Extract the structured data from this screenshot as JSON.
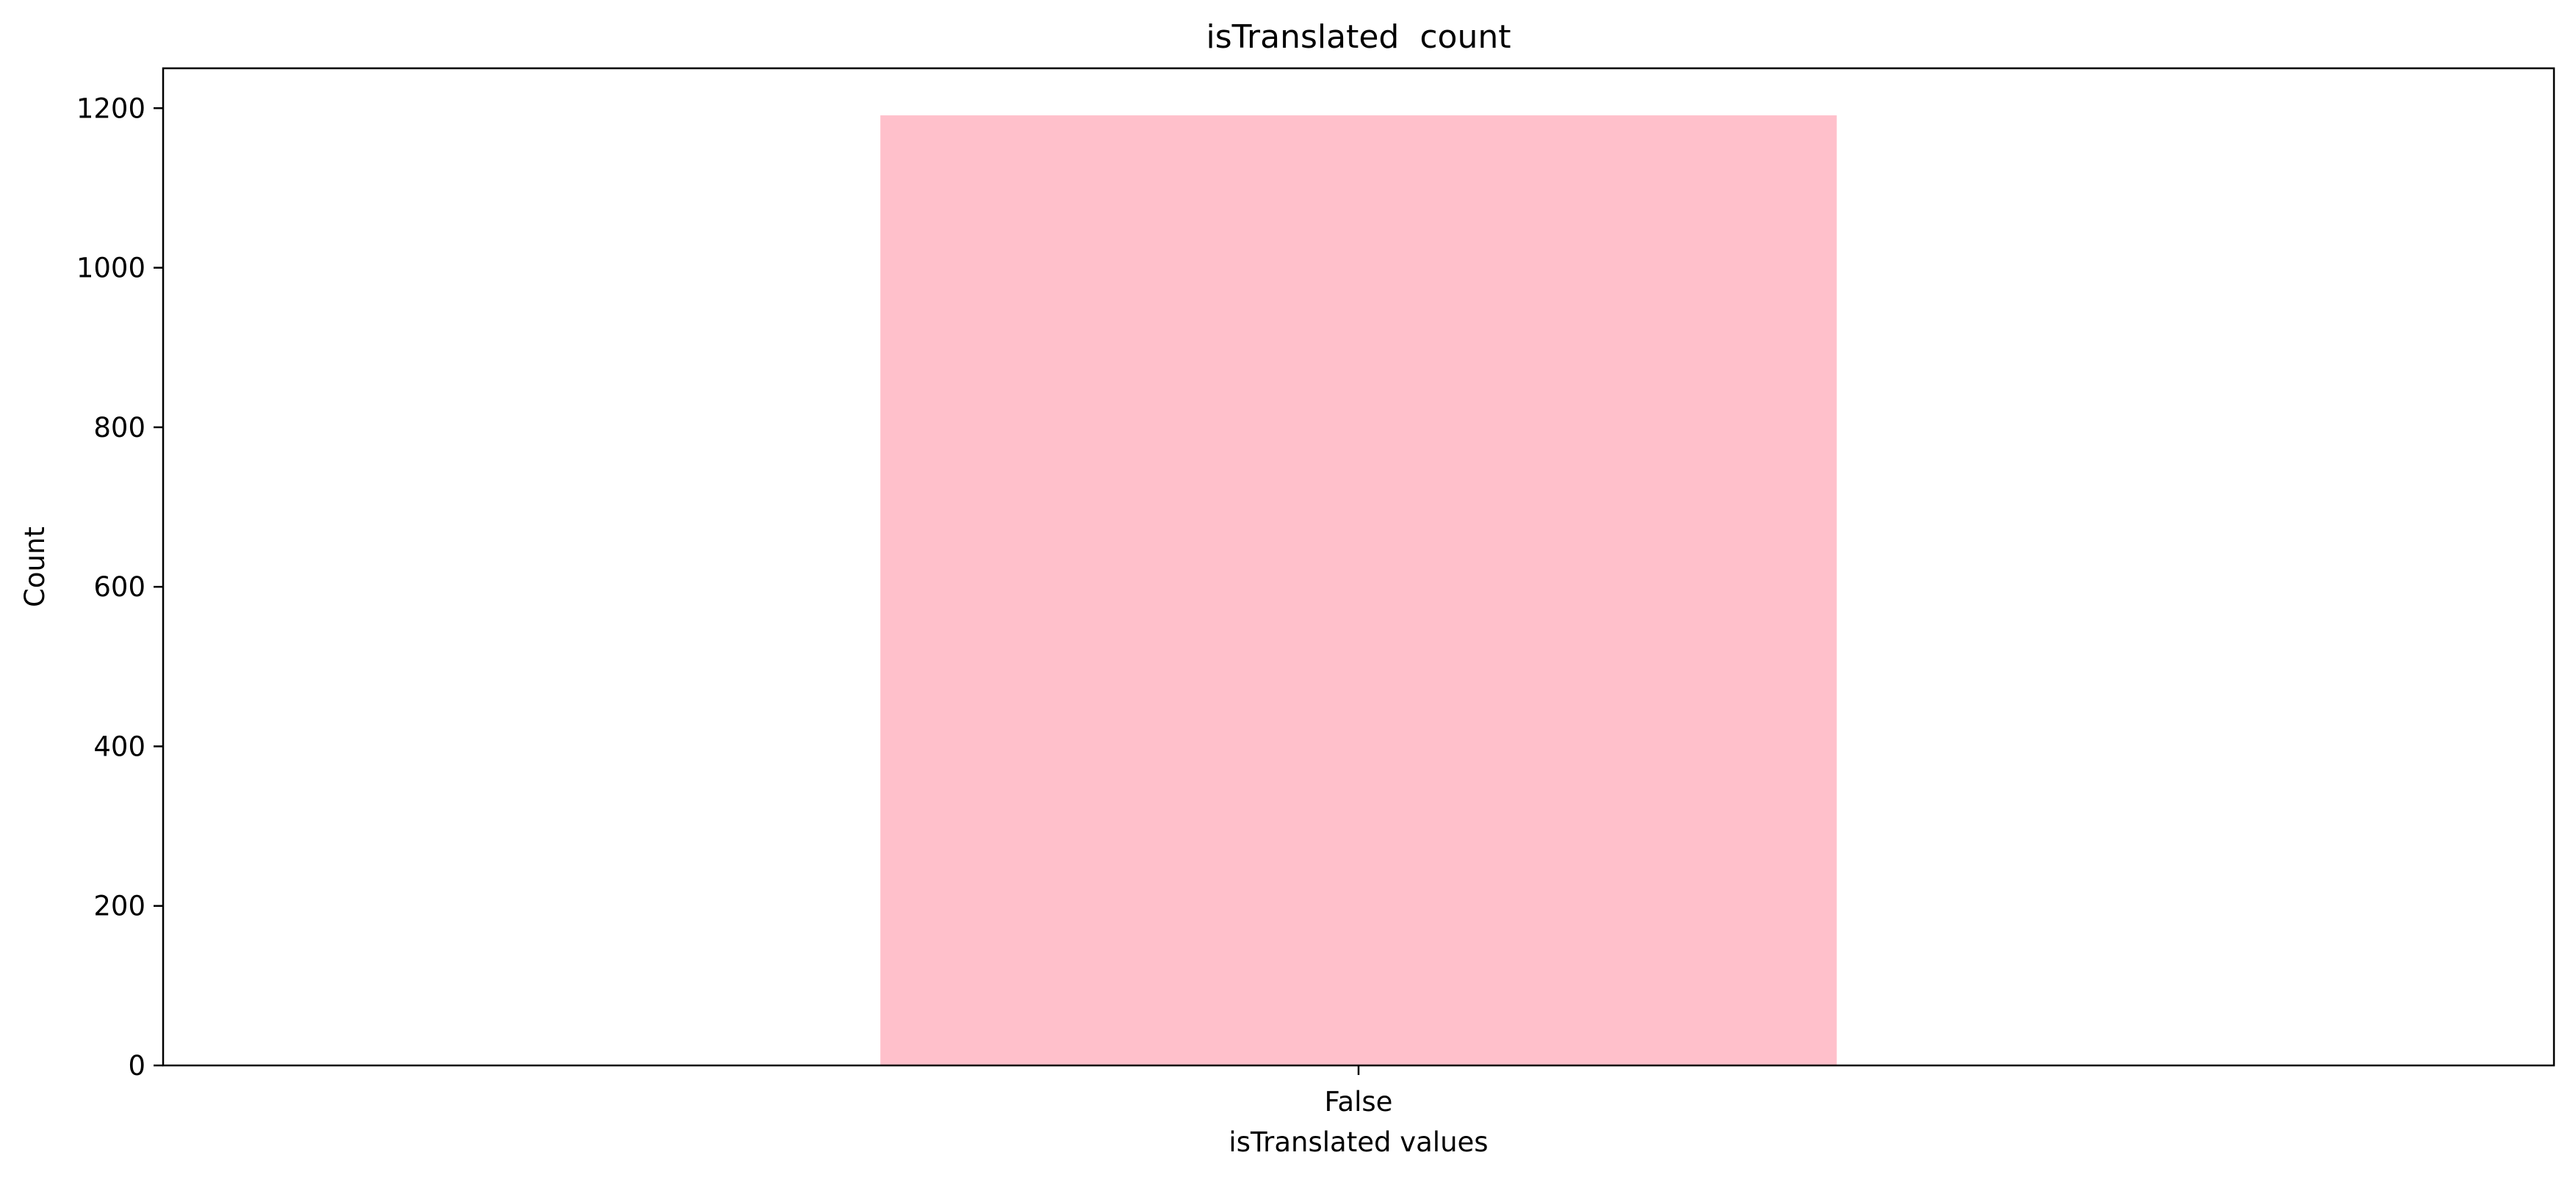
{
  "chart_data": {
    "type": "bar",
    "title": "isTranslated  count",
    "xlabel": "isTranslated values",
    "ylabel": "Count",
    "categories": [
      "False"
    ],
    "values": [
      1191
    ],
    "ylim": [
      0,
      1250
    ],
    "yticks": [
      0,
      200,
      400,
      600,
      800,
      1000,
      1200
    ],
    "bar_color": "#ffc0cb",
    "grid": false,
    "legend": "none"
  }
}
